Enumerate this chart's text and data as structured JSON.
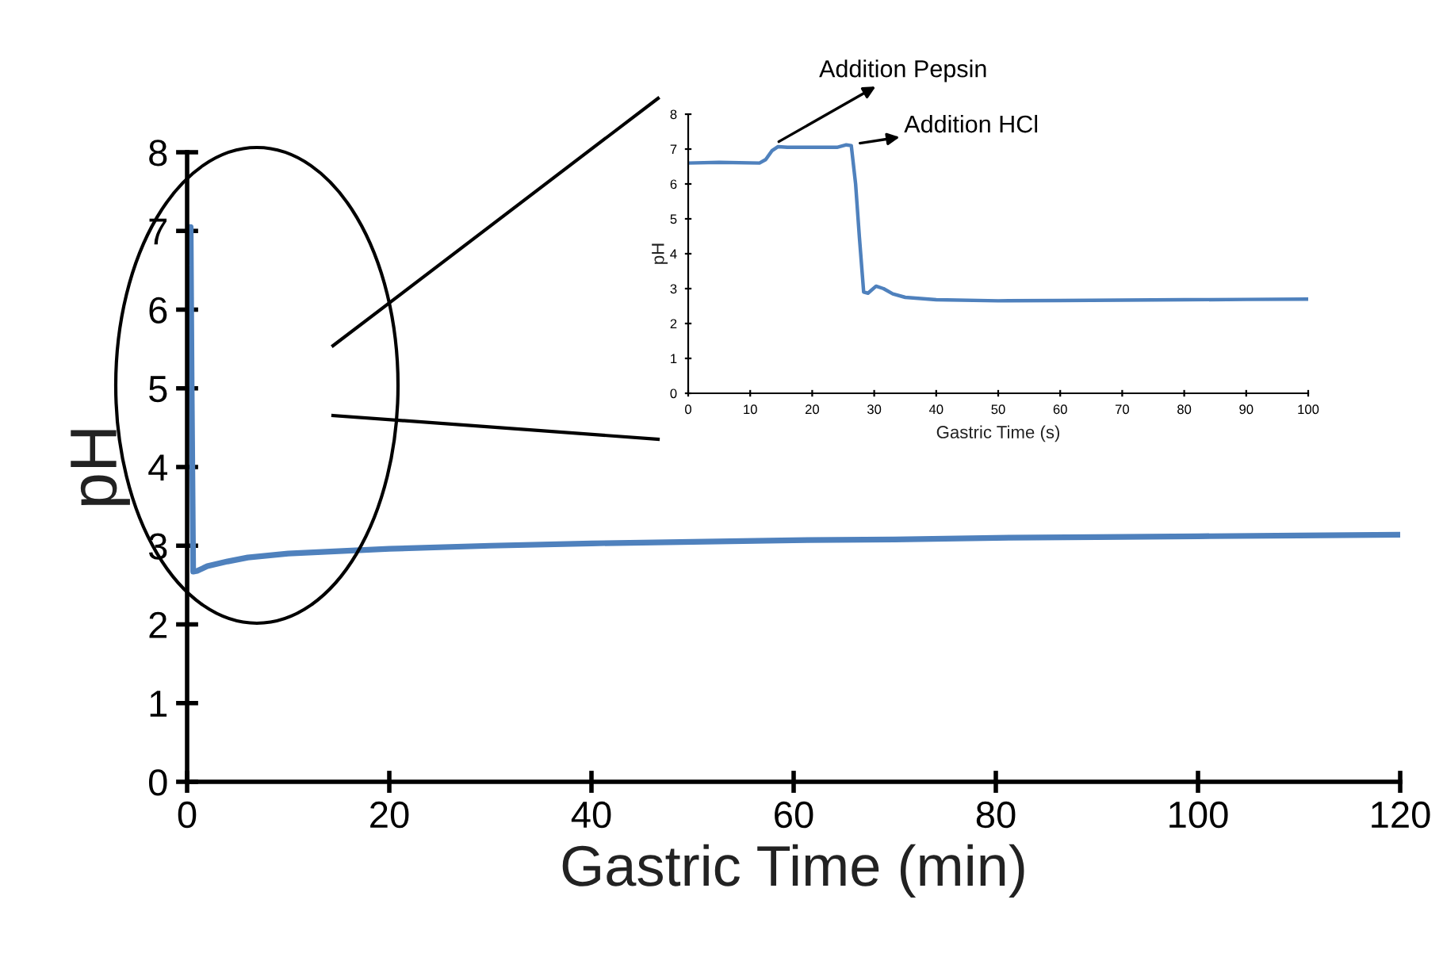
{
  "chart_data": [
    {
      "type": "line",
      "xlabel": "Gastric Time (min)",
      "ylabel": "pH",
      "xlim": [
        0,
        120
      ],
      "ylim": [
        0,
        8
      ],
      "xticks": [
        0,
        20,
        40,
        60,
        80,
        100,
        120
      ],
      "yticks": [
        0,
        1,
        2,
        3,
        4,
        5,
        6,
        7,
        8
      ],
      "grid": false,
      "legend": false,
      "series": [
        {
          "color": "#4f81bd",
          "x": [
            0.1,
            0.2,
            0.35,
            0.45,
            0.6,
            1,
            2,
            4,
            6,
            10,
            15,
            20,
            30,
            40,
            50,
            60,
            70,
            80,
            90,
            100,
            110,
            120
          ],
          "values": [
            6.6,
            7.05,
            7.05,
            5.0,
            2.67,
            2.68,
            2.74,
            2.8,
            2.85,
            2.9,
            2.93,
            2.96,
            3.0,
            3.03,
            3.05,
            3.07,
            3.08,
            3.1,
            3.11,
            3.12,
            3.13,
            3.14
          ]
        }
      ]
    },
    {
      "type": "line",
      "xlabel": "Gastric Time (s)",
      "ylabel": "pH",
      "xlim": [
        0,
        100
      ],
      "ylim": [
        0,
        8
      ],
      "xticks": [
        0,
        10,
        20,
        30,
        40,
        50,
        60,
        70,
        80,
        90,
        100
      ],
      "yticks": [
        0,
        1,
        2,
        3,
        4,
        5,
        6,
        7,
        8
      ],
      "grid": false,
      "legend": false,
      "annotations": [
        {
          "text": "Addition Pepsin",
          "x": 14,
          "y": 7.15
        },
        {
          "text": "Addition HCl",
          "x": 27,
          "y": 7.15
        }
      ],
      "series": [
        {
          "color": "#4f81bd",
          "x": [
            0,
            5,
            11.5,
            12.5,
            13.5,
            14.5,
            16,
            20,
            24,
            25.5,
            26.3,
            27,
            27.6,
            28.3,
            29,
            30.3,
            31.5,
            33,
            35,
            40,
            50,
            60,
            70,
            80,
            90,
            100
          ],
          "values": [
            6.6,
            6.62,
            6.6,
            6.7,
            6.95,
            7.07,
            7.05,
            7.05,
            7.05,
            7.12,
            7.1,
            6.0,
            4.5,
            2.9,
            2.87,
            3.07,
            3.0,
            2.85,
            2.75,
            2.68,
            2.65,
            2.66,
            2.67,
            2.68,
            2.69,
            2.7
          ]
        }
      ]
    }
  ]
}
